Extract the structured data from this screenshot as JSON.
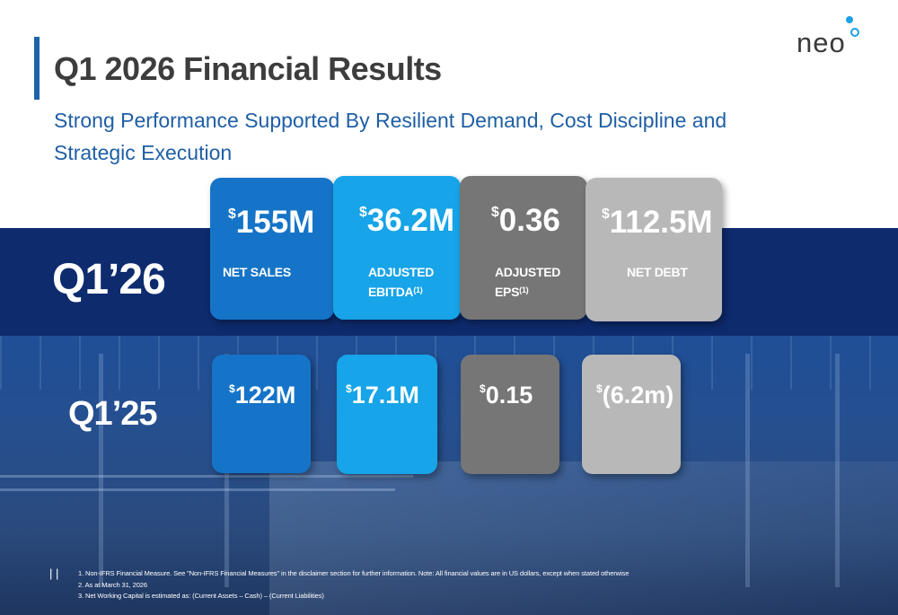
{
  "header": {
    "title": "Q1 2026 Financial Results",
    "subtitle": "Strong Performance Supported By Resilient Demand, Cost Discipline and Strategic Execution"
  },
  "logo": {
    "text": "neo"
  },
  "rows": {
    "q126": {
      "label": "Q1’26",
      "cards": [
        {
          "currency": "$",
          "value": "155M",
          "label": "NET SALES",
          "note": ""
        },
        {
          "currency": "$",
          "value": "36.2M",
          "label_line1": "ADJUSTED",
          "label_line2": "EBITDA",
          "note": "(1)"
        },
        {
          "currency": "$",
          "value": "0.36",
          "label_line1": "ADJUSTED",
          "label_line2": "EPS",
          "note": "(1)"
        },
        {
          "currency": "$",
          "value": "112.5M",
          "label": "NET DEBT",
          "note": ""
        }
      ]
    },
    "q125": {
      "label": "Q1’25",
      "cards": [
        {
          "currency": "$",
          "value": "122M"
        },
        {
          "currency": "$",
          "value": "17.1M"
        },
        {
          "currency": "$",
          "value": "0.15"
        },
        {
          "currency": "$",
          "value": "(6.2m)"
        }
      ]
    }
  },
  "footer": {
    "page_number": "| |",
    "notes": [
      "1. Non-IFRS Financial Measure. See \"Non-IFRS Financial Measures\" in the disclaimer section for further information. Note: All financial values are in US dollars, except when stated otherwise",
      "2. As at March 31, 2026",
      "3. Net Working Capital is estimated as: (Current Assets – Cash) – (Current Liabilities)"
    ]
  },
  "colors": {
    "accent": "#1e63a8",
    "title_text": "#3d3d3d",
    "subtitle_text": "#1f5fa5",
    "band_dark": "#0e2b6e",
    "card_blue": "#1574c7",
    "card_cyan": "#17a4e8",
    "card_gray": "#767676",
    "card_light_gray": "#b8b8b8",
    "logo_dot": "#1ea0e6"
  }
}
